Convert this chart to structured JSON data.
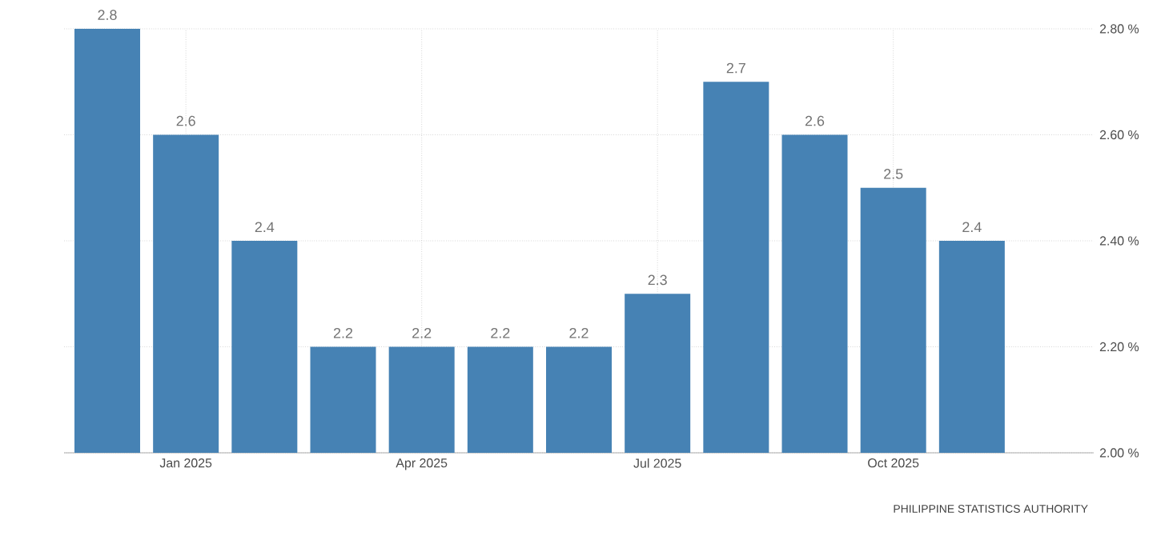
{
  "chart_data": {
    "type": "bar",
    "categories": [
      null,
      "Jan 2025",
      null,
      null,
      "Apr 2025",
      null,
      null,
      "Jul 2025",
      null,
      null,
      "Oct 2025",
      null
    ],
    "values": [
      2.8,
      2.6,
      2.4,
      2.2,
      2.2,
      2.2,
      2.2,
      2.3,
      2.7,
      2.6,
      2.5,
      2.4
    ],
    "color": "#4682b4",
    "ylim": [
      2.0,
      2.8
    ],
    "yticks": [
      {
        "value": 2.0,
        "label": "2.00 %"
      },
      {
        "value": 2.2,
        "label": "2.20 %"
      },
      {
        "value": 2.4,
        "label": "2.40 %"
      },
      {
        "value": 2.6,
        "label": "2.60 %"
      },
      {
        "value": 2.8,
        "label": "2.80 %"
      }
    ],
    "grid": true,
    "data_labels": true,
    "annotations": [
      "PHILIPPINE STATISTICS AUTHORITY"
    ]
  }
}
